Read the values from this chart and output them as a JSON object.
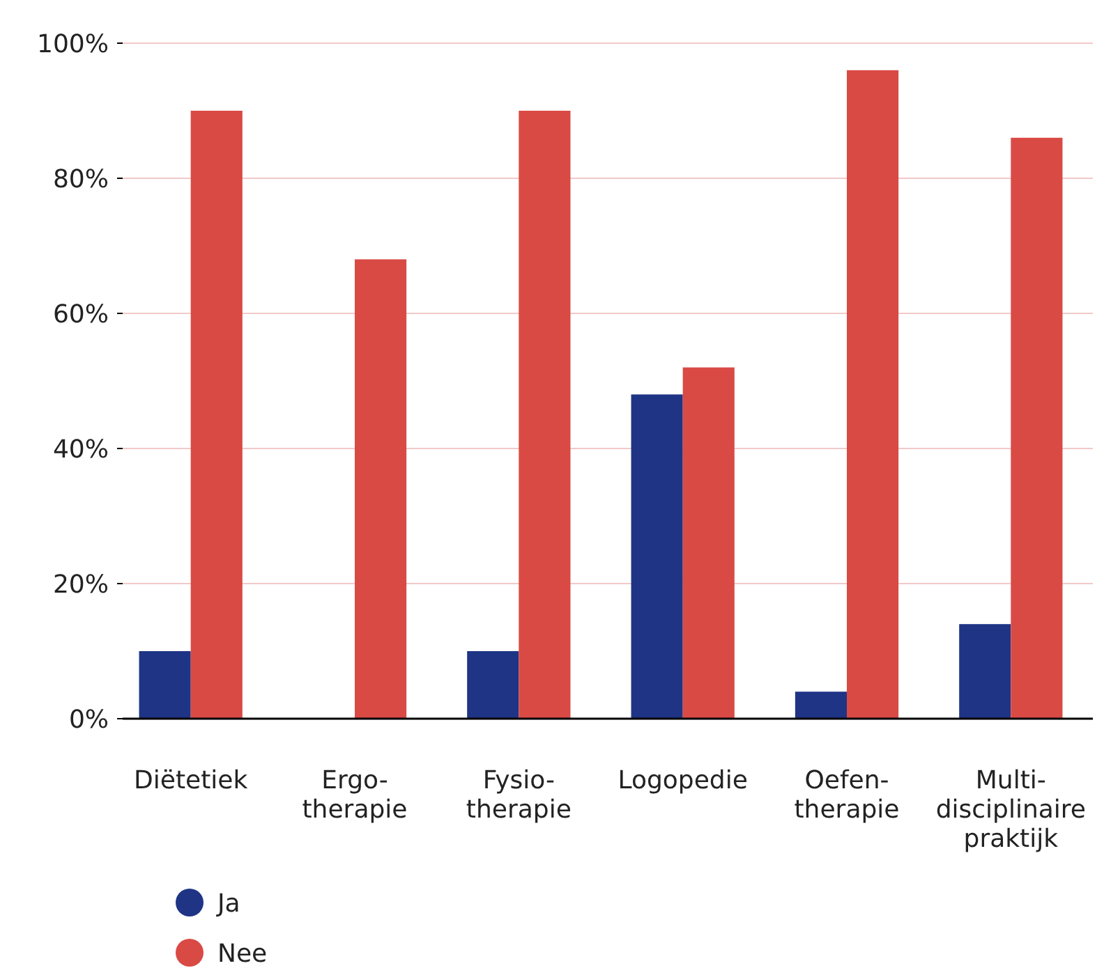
{
  "chart_data": {
    "type": "bar",
    "categories": [
      "Diëtetiek",
      "Ergo-\ntherapie",
      "Fysio-\ntherapie",
      "Logopedie",
      "Oefen-\ntherapie",
      "Multi-\ndisciplinaire\npraktijk"
    ],
    "series": [
      {
        "name": "Ja",
        "color": "#1f3485",
        "values": [
          10,
          0,
          10,
          48,
          4,
          14
        ]
      },
      {
        "name": "Nee",
        "color": "#d94a45",
        "values": [
          90,
          68,
          90,
          52,
          96,
          86
        ]
      }
    ],
    "ylim": [
      0,
      100
    ],
    "yticks": [
      {
        "value": 0,
        "label": "0%"
      },
      {
        "value": 20,
        "label": "20%"
      },
      {
        "value": 40,
        "label": "40%"
      },
      {
        "value": 60,
        "label": "60%"
      },
      {
        "value": 80,
        "label": "80%"
      },
      {
        "value": 100,
        "label": "100%"
      }
    ],
    "grid": "y",
    "legend": "bottom"
  }
}
